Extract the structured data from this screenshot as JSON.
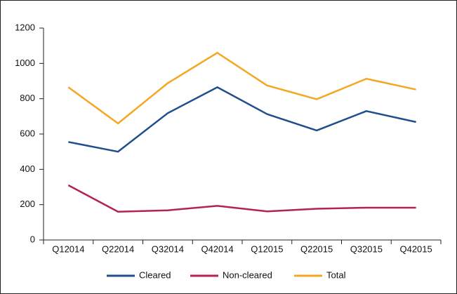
{
  "chart_data": {
    "type": "line",
    "categories": [
      "Q12014",
      "Q22014",
      "Q32014",
      "Q42014",
      "Q12015",
      "Q22015",
      "Q32015",
      "Q42015"
    ],
    "series": [
      {
        "name": "Cleared",
        "color": "#1f4e8c",
        "values": [
          555,
          500,
          718,
          865,
          713,
          620,
          730,
          668
        ]
      },
      {
        "name": "Non-cleared",
        "color": "#b5234f",
        "values": [
          310,
          160,
          168,
          193,
          162,
          177,
          183,
          183
        ]
      },
      {
        "name": "Total",
        "color": "#f5a623",
        "values": [
          865,
          660,
          888,
          1060,
          875,
          797,
          913,
          852
        ]
      }
    ],
    "ylim": [
      0,
      1200
    ],
    "yticks": [
      0,
      200,
      400,
      600,
      800,
      1000,
      1200
    ],
    "grid": false,
    "legend": "bottom"
  }
}
